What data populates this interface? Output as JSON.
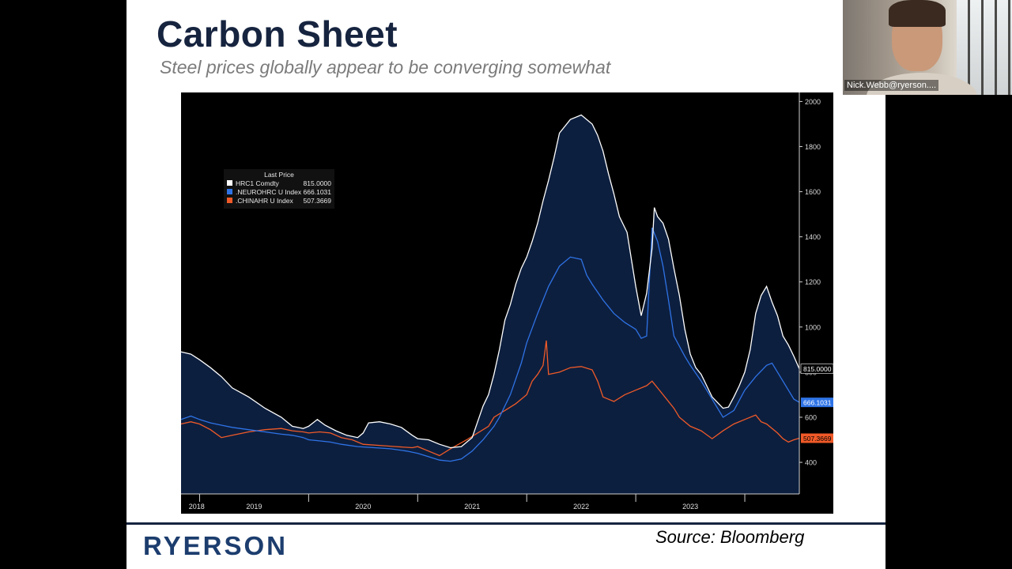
{
  "slide": {
    "title": "Carbon Sheet",
    "subtitle": "Steel prices globally appear to be converging somewhat",
    "source": "Source: Bloomberg",
    "logo_text": "RYERSON"
  },
  "webcam": {
    "participant_name": "Nick.Webb@ryerson...."
  },
  "chart_data": {
    "type": "area",
    "legend": {
      "title": "Last Price",
      "placement": "top-left",
      "entries": [
        {
          "label": "HRC1 Comdty",
          "value": "815.0000"
        },
        {
          "label": ".NEUROHRC U Index",
          "value": "666.1031"
        },
        {
          "label": ".CHINAHR U Index",
          "value": "507.3669"
        }
      ]
    },
    "x_ticks": [
      "2018",
      "2019",
      "2020",
      "2021",
      "2022",
      "2023"
    ],
    "y_ticks": [
      "2000",
      "1800",
      "1600",
      "1400",
      "1200",
      "1000",
      "800",
      "600",
      "400"
    ],
    "ylim": [
      260,
      2040
    ],
    "xlim": [
      2017.83,
      2023.5
    ],
    "grid": false,
    "colors": {
      "background": "#000000",
      "fill": "#0d1f3f",
      "axis": "#cfcfcf",
      "hrc": "#ffffff",
      "neuro": "#2e73e6",
      "china": "#f05a28"
    },
    "series": [
      {
        "name": "HRC1 Comdty",
        "last_label": "815.0000",
        "points": [
          [
            2017.83,
            890
          ],
          [
            2017.92,
            880
          ],
          [
            2018.0,
            855
          ],
          [
            2018.1,
            820
          ],
          [
            2018.2,
            780
          ],
          [
            2018.3,
            730
          ],
          [
            2018.45,
            690
          ],
          [
            2018.6,
            640
          ],
          [
            2018.75,
            600
          ],
          [
            2018.85,
            560
          ],
          [
            2018.95,
            550
          ],
          [
            2019.0,
            560
          ],
          [
            2019.08,
            590
          ],
          [
            2019.15,
            565
          ],
          [
            2019.25,
            540
          ],
          [
            2019.35,
            520
          ],
          [
            2019.45,
            510
          ],
          [
            2019.5,
            530
          ],
          [
            2019.55,
            575
          ],
          [
            2019.65,
            580
          ],
          [
            2019.75,
            570
          ],
          [
            2019.85,
            555
          ],
          [
            2019.95,
            520
          ],
          [
            2020.0,
            505
          ],
          [
            2020.1,
            500
          ],
          [
            2020.2,
            480
          ],
          [
            2020.3,
            465
          ],
          [
            2020.4,
            470
          ],
          [
            2020.5,
            510
          ],
          [
            2020.55,
            580
          ],
          [
            2020.6,
            650
          ],
          [
            2020.65,
            700
          ],
          [
            2020.7,
            790
          ],
          [
            2020.75,
            900
          ],
          [
            2020.8,
            1030
          ],
          [
            2020.85,
            1100
          ],
          [
            2020.9,
            1190
          ],
          [
            2020.95,
            1260
          ],
          [
            2021.0,
            1310
          ],
          [
            2021.05,
            1380
          ],
          [
            2021.1,
            1460
          ],
          [
            2021.15,
            1560
          ],
          [
            2021.2,
            1650
          ],
          [
            2021.25,
            1750
          ],
          [
            2021.3,
            1860
          ],
          [
            2021.4,
            1920
          ],
          [
            2021.5,
            1940
          ],
          [
            2021.6,
            1900
          ],
          [
            2021.65,
            1850
          ],
          [
            2021.7,
            1780
          ],
          [
            2021.75,
            1680
          ],
          [
            2021.8,
            1590
          ],
          [
            2021.85,
            1490
          ],
          [
            2021.92,
            1420
          ],
          [
            2022.0,
            1180
          ],
          [
            2022.05,
            1050
          ],
          [
            2022.1,
            1150
          ],
          [
            2022.15,
            1350
          ],
          [
            2022.17,
            1530
          ],
          [
            2022.2,
            1490
          ],
          [
            2022.25,
            1460
          ],
          [
            2022.3,
            1390
          ],
          [
            2022.35,
            1260
          ],
          [
            2022.4,
            1140
          ],
          [
            2022.45,
            990
          ],
          [
            2022.5,
            880
          ],
          [
            2022.55,
            820
          ],
          [
            2022.6,
            790
          ],
          [
            2022.65,
            740
          ],
          [
            2022.7,
            690
          ],
          [
            2022.75,
            665
          ],
          [
            2022.8,
            640
          ],
          [
            2022.85,
            645
          ],
          [
            2022.9,
            690
          ],
          [
            2022.95,
            740
          ],
          [
            2023.0,
            800
          ],
          [
            2023.05,
            900
          ],
          [
            2023.1,
            1060
          ],
          [
            2023.15,
            1140
          ],
          [
            2023.2,
            1180
          ],
          [
            2023.25,
            1110
          ],
          [
            2023.3,
            1050
          ],
          [
            2023.35,
            960
          ],
          [
            2023.4,
            920
          ],
          [
            2023.45,
            870
          ],
          [
            2023.5,
            815
          ]
        ]
      },
      {
        "name": ".NEUROHRC U Index",
        "last_label": "666.1031",
        "points": [
          [
            2017.83,
            590
          ],
          [
            2017.92,
            605
          ],
          [
            2018.0,
            590
          ],
          [
            2018.1,
            575
          ],
          [
            2018.2,
            565
          ],
          [
            2018.3,
            555
          ],
          [
            2018.45,
            545
          ],
          [
            2018.6,
            535
          ],
          [
            2018.75,
            525
          ],
          [
            2018.85,
            520
          ],
          [
            2018.95,
            510
          ],
          [
            2019.0,
            500
          ],
          [
            2019.1,
            495
          ],
          [
            2019.2,
            490
          ],
          [
            2019.3,
            480
          ],
          [
            2019.45,
            470
          ],
          [
            2019.6,
            465
          ],
          [
            2019.75,
            460
          ],
          [
            2019.9,
            450
          ],
          [
            2020.0,
            440
          ],
          [
            2020.1,
            425
          ],
          [
            2020.2,
            410
          ],
          [
            2020.3,
            405
          ],
          [
            2020.4,
            415
          ],
          [
            2020.5,
            450
          ],
          [
            2020.6,
            500
          ],
          [
            2020.7,
            560
          ],
          [
            2020.75,
            600
          ],
          [
            2020.85,
            700
          ],
          [
            2020.95,
            840
          ],
          [
            2021.0,
            930
          ],
          [
            2021.1,
            1060
          ],
          [
            2021.2,
            1180
          ],
          [
            2021.3,
            1270
          ],
          [
            2021.4,
            1310
          ],
          [
            2021.5,
            1300
          ],
          [
            2021.55,
            1230
          ],
          [
            2021.6,
            1190
          ],
          [
            2021.7,
            1120
          ],
          [
            2021.8,
            1060
          ],
          [
            2021.9,
            1020
          ],
          [
            2022.0,
            990
          ],
          [
            2022.05,
            950
          ],
          [
            2022.1,
            960
          ],
          [
            2022.12,
            1160
          ],
          [
            2022.15,
            1440
          ],
          [
            2022.2,
            1380
          ],
          [
            2022.25,
            1270
          ],
          [
            2022.3,
            1120
          ],
          [
            2022.35,
            960
          ],
          [
            2022.45,
            870
          ],
          [
            2022.5,
            830
          ],
          [
            2022.6,
            760
          ],
          [
            2022.7,
            680
          ],
          [
            2022.8,
            600
          ],
          [
            2022.9,
            630
          ],
          [
            2023.0,
            720
          ],
          [
            2023.1,
            780
          ],
          [
            2023.2,
            830
          ],
          [
            2023.25,
            840
          ],
          [
            2023.3,
            800
          ],
          [
            2023.35,
            760
          ],
          [
            2023.4,
            720
          ],
          [
            2023.45,
            680
          ],
          [
            2023.5,
            666
          ]
        ]
      },
      {
        "name": ".CHINAHR U Index",
        "last_label": "507.3669",
        "points": [
          [
            2017.83,
            570
          ],
          [
            2017.92,
            580
          ],
          [
            2018.0,
            570
          ],
          [
            2018.1,
            545
          ],
          [
            2018.2,
            510
          ],
          [
            2018.3,
            520
          ],
          [
            2018.45,
            535
          ],
          [
            2018.6,
            545
          ],
          [
            2018.75,
            550
          ],
          [
            2018.85,
            540
          ],
          [
            2018.95,
            535
          ],
          [
            2019.0,
            530
          ],
          [
            2019.1,
            535
          ],
          [
            2019.2,
            530
          ],
          [
            2019.3,
            510
          ],
          [
            2019.4,
            500
          ],
          [
            2019.5,
            480
          ],
          [
            2019.65,
            475
          ],
          [
            2019.8,
            470
          ],
          [
            2019.95,
            465
          ],
          [
            2020.0,
            470
          ],
          [
            2020.1,
            450
          ],
          [
            2020.2,
            430
          ],
          [
            2020.3,
            460
          ],
          [
            2020.45,
            500
          ],
          [
            2020.55,
            530
          ],
          [
            2020.65,
            560
          ],
          [
            2020.7,
            600
          ],
          [
            2020.8,
            630
          ],
          [
            2020.9,
            660
          ],
          [
            2021.0,
            700
          ],
          [
            2021.05,
            760
          ],
          [
            2021.1,
            790
          ],
          [
            2021.15,
            830
          ],
          [
            2021.18,
            940
          ],
          [
            2021.2,
            790
          ],
          [
            2021.3,
            800
          ],
          [
            2021.4,
            820
          ],
          [
            2021.5,
            825
          ],
          [
            2021.6,
            810
          ],
          [
            2021.65,
            760
          ],
          [
            2021.7,
            690
          ],
          [
            2021.8,
            670
          ],
          [
            2021.9,
            700
          ],
          [
            2022.0,
            720
          ],
          [
            2022.1,
            740
          ],
          [
            2022.15,
            760
          ],
          [
            2022.25,
            700
          ],
          [
            2022.35,
            640
          ],
          [
            2022.4,
            600
          ],
          [
            2022.5,
            560
          ],
          [
            2022.6,
            540
          ],
          [
            2022.7,
            505
          ],
          [
            2022.8,
            540
          ],
          [
            2022.9,
            570
          ],
          [
            2023.0,
            590
          ],
          [
            2023.1,
            610
          ],
          [
            2023.15,
            580
          ],
          [
            2023.2,
            570
          ],
          [
            2023.3,
            530
          ],
          [
            2023.35,
            505
          ],
          [
            2023.4,
            490
          ],
          [
            2023.45,
            500
          ],
          [
            2023.5,
            507
          ]
        ]
      }
    ]
  }
}
